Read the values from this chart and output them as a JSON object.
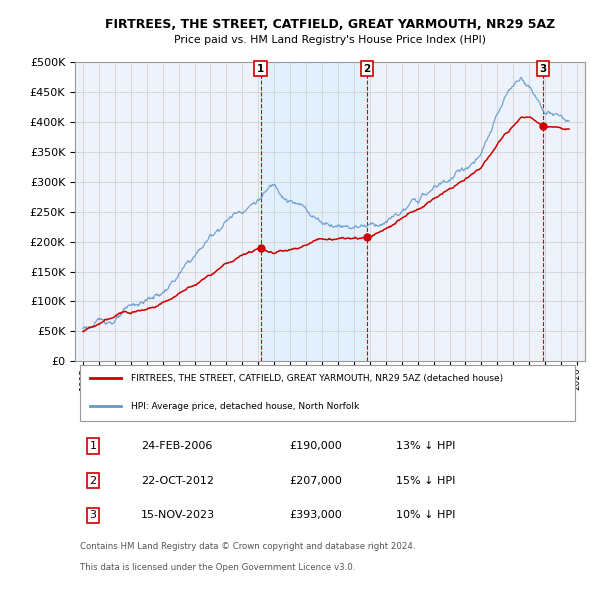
{
  "title": "FIRTREES, THE STREET, CATFIELD, GREAT YARMOUTH, NR29 5AZ",
  "subtitle": "Price paid vs. HM Land Registry's House Price Index (HPI)",
  "legend_line1": "FIRTREES, THE STREET, CATFIELD, GREAT YARMOUTH, NR29 5AZ (detached house)",
  "legend_line2": "HPI: Average price, detached house, North Norfolk",
  "footer1": "Contains HM Land Registry data © Crown copyright and database right 2024.",
  "footer2": "This data is licensed under the Open Government Licence v3.0.",
  "transactions": [
    {
      "num": 1,
      "date": "24-FEB-2006",
      "price": "£190,000",
      "hpi": "13% ↓ HPI"
    },
    {
      "num": 2,
      "date": "22-OCT-2012",
      "price": "£207,000",
      "hpi": "15% ↓ HPI"
    },
    {
      "num": 3,
      "date": "15-NOV-2023",
      "price": "£393,000",
      "hpi": "10% ↓ HPI"
    }
  ],
  "transaction_years": [
    2006.15,
    2012.81,
    2023.88
  ],
  "transaction_prices": [
    190000,
    207000,
    393000
  ],
  "ylim": [
    0,
    500000
  ],
  "yticks": [
    0,
    50000,
    100000,
    150000,
    200000,
    250000,
    300000,
    350000,
    400000,
    450000,
    500000
  ],
  "xlim_start": 1994.5,
  "xlim_end": 2026.5,
  "property_color": "#cc0000",
  "hpi_color": "#6699cc",
  "hpi_fill_color": "#ddeeff",
  "background_color": "#eef2fa",
  "grid_color": "#cccccc"
}
